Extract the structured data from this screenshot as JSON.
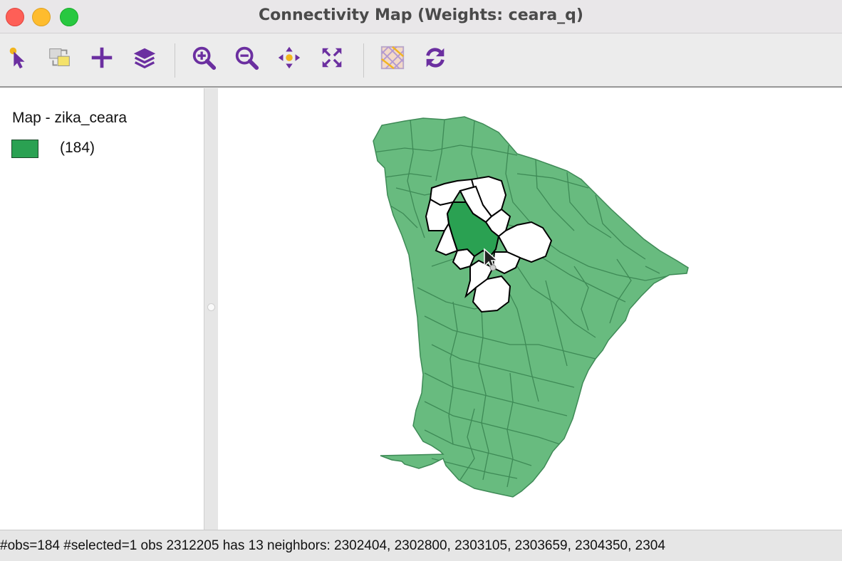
{
  "window": {
    "title": "Connectivity Map (Weights: ceara_q)",
    "controls": [
      "close",
      "minimize",
      "maximize"
    ]
  },
  "toolbar": {
    "buttons": [
      {
        "icon": "select-pointer-icon"
      },
      {
        "icon": "select-table-icon"
      },
      {
        "icon": "add-crosshair-icon"
      },
      {
        "icon": "layers-icon"
      },
      {
        "icon": "zoom-in-icon"
      },
      {
        "icon": "zoom-out-icon"
      },
      {
        "icon": "pan-icon"
      },
      {
        "icon": "fit-extent-icon"
      },
      {
        "icon": "basemap-icon"
      },
      {
        "icon": "refresh-icon"
      }
    ],
    "accent": "#6b2fa0"
  },
  "legend": {
    "title": "Map - zika_ceara",
    "items": [
      {
        "label": "(184)",
        "color": "#2aa152"
      }
    ]
  },
  "map": {
    "fill": "#68bb7f",
    "border": "#3e8a56",
    "selected_fill": "#2aa152",
    "neighbor_fill": "#ffffff"
  },
  "status": {
    "text": "#obs=184 #selected=1  obs 2312205 has 13 neighbors: 2302404, 2302800, 2303105, 2303659, 2304350, 2304"
  }
}
